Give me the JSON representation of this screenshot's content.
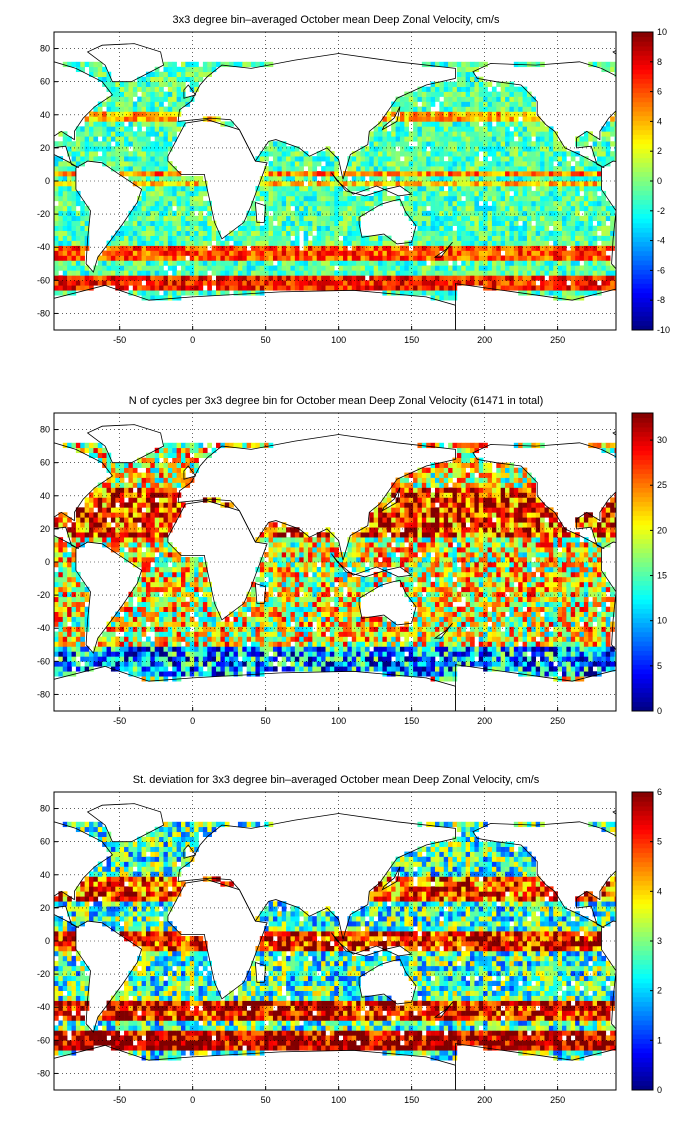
{
  "figure": {
    "colormap": "jet",
    "land_color": "#ffffff",
    "coastline_color": "#000000"
  },
  "chart_data": [
    {
      "type": "heatmap",
      "title": "3x3 degree bin–averaged October mean Deep Zonal Velocity, cm/s",
      "xlabel": "",
      "ylabel": "",
      "xlim": [
        -95,
        290
      ],
      "ylim": [
        -90,
        90
      ],
      "x_ticks": [
        -50,
        0,
        50,
        100,
        150,
        200,
        250
      ],
      "y_ticks": [
        80,
        60,
        40,
        20,
        0,
        -20,
        -40,
        -60,
        -80
      ],
      "grid": true,
      "bin_size_deg": 3,
      "colorbar": {
        "min": -10,
        "max": 10,
        "ticks": [
          10,
          8,
          6,
          4,
          2,
          0,
          -2,
          -4,
          -6,
          -8,
          -10
        ],
        "placement": "right"
      },
      "field": {
        "background_value": -1,
        "zonal_bands": [
          {
            "lat_from": -66,
            "lat_to": -56,
            "value": 7
          },
          {
            "lat_from": -48,
            "lat_to": -40,
            "value": 6
          },
          {
            "lat_from": 3,
            "lat_to": 6,
            "value": 5
          },
          {
            "lat_from": -3,
            "lat_to": -1,
            "value": 3.5
          },
          {
            "lat_from": 36,
            "lat_to": 42,
            "value": 4
          }
        ],
        "noise_amplitude": 2.5
      }
    },
    {
      "type": "heatmap",
      "title": "N of cycles per 3x3 degree bin for October mean Deep Zonal Velocity (61471 in total)",
      "xlabel": "",
      "ylabel": "",
      "xlim": [
        -95,
        290
      ],
      "ylim": [
        -90,
        90
      ],
      "x_ticks": [
        -50,
        0,
        50,
        100,
        150,
        200,
        250
      ],
      "y_ticks": [
        80,
        60,
        40,
        20,
        0,
        -20,
        -40,
        -60,
        -80
      ],
      "grid": true,
      "bin_size_deg": 3,
      "total_cycles": 61471,
      "colorbar": {
        "min": 0,
        "max": 33,
        "ticks": [
          30,
          25,
          20,
          15,
          10,
          5,
          0
        ],
        "placement": "right"
      },
      "field": {
        "background_value": 20,
        "zonal_bands": [
          {
            "lat_from": 15,
            "lat_to": 45,
            "value": 28
          },
          {
            "lat_from": -70,
            "lat_to": -50,
            "value": 9
          }
        ],
        "noise_amplitude": 10
      }
    },
    {
      "type": "heatmap",
      "title": "St. deviation for 3x3 degree bin–averaged October mean Deep Zonal Velocity, cm/s",
      "xlabel": "",
      "ylabel": "",
      "xlim": [
        -95,
        290
      ],
      "ylim": [
        -90,
        90
      ],
      "x_ticks": [
        -50,
        0,
        50,
        100,
        150,
        200,
        250
      ],
      "y_ticks": [
        80,
        60,
        40,
        20,
        0,
        -20,
        -40,
        -60,
        -80
      ],
      "grid": true,
      "bin_size_deg": 3,
      "colorbar": {
        "min": 0,
        "max": 6,
        "ticks": [
          6,
          5,
          4,
          3,
          2,
          1,
          0
        ],
        "placement": "right"
      },
      "field": {
        "background_value": 2.6,
        "zonal_bands": [
          {
            "lat_from": -66,
            "lat_to": -54,
            "value": 5.8
          },
          {
            "lat_from": -48,
            "lat_to": -36,
            "value": 5.4
          },
          {
            "lat_from": -6,
            "lat_to": 6,
            "value": 5.2
          },
          {
            "lat_from": 24,
            "lat_to": 40,
            "value": 4.8
          }
        ],
        "noise_amplitude": 1.5
      }
    }
  ]
}
